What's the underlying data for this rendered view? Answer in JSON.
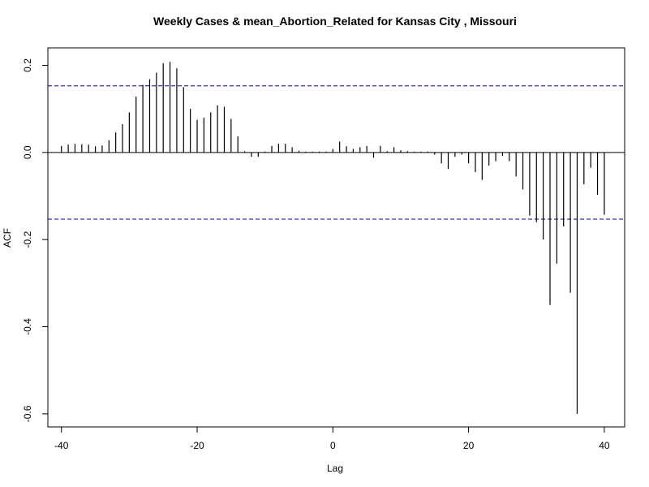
{
  "chart_data": {
    "type": "bar",
    "subtype": "acf-ccf",
    "title": "Weekly Cases & mean_Abortion_Related for Kansas City , Missouri",
    "xlabel": "Lag",
    "ylabel": "ACF",
    "xlim": [
      -42,
      43
    ],
    "ylim": [
      -0.63,
      0.24
    ],
    "xticks": [
      -40,
      -20,
      0,
      20,
      40
    ],
    "xtick_labels": [
      "-40",
      "-20",
      "0",
      "20",
      "40"
    ],
    "yticks": [
      -0.6,
      -0.4,
      -0.2,
      0.0,
      0.2
    ],
    "ytick_labels": [
      "-0.6",
      "-0.4",
      "-0.2",
      "0.0",
      "0.2"
    ],
    "confidence_bound": 0.153,
    "lags": [
      -40,
      -39,
      -38,
      -37,
      -36,
      -35,
      -34,
      -33,
      -32,
      -31,
      -30,
      -29,
      -28,
      -27,
      -26,
      -25,
      -24,
      -23,
      -22,
      -21,
      -20,
      -19,
      -18,
      -17,
      -16,
      -15,
      -14,
      -13,
      -12,
      -11,
      -10,
      -9,
      -8,
      -7,
      -6,
      -5,
      -4,
      -3,
      -2,
      -1,
      0,
      1,
      2,
      3,
      4,
      5,
      6,
      7,
      8,
      9,
      10,
      11,
      12,
      13,
      14,
      15,
      16,
      17,
      18,
      19,
      20,
      21,
      22,
      23,
      24,
      25,
      26,
      27,
      28,
      29,
      30,
      31,
      32,
      33,
      34,
      35,
      36,
      37,
      38,
      39,
      40
    ],
    "values": [
      0.015,
      0.018,
      0.02,
      0.019,
      0.018,
      0.014,
      0.016,
      0.028,
      0.046,
      0.065,
      0.092,
      0.128,
      0.155,
      0.168,
      0.183,
      0.205,
      0.208,
      0.193,
      0.15,
      0.1,
      0.075,
      0.08,
      0.092,
      0.108,
      0.105,
      0.077,
      0.037,
      0.003,
      -0.01,
      -0.01,
      0.002,
      0.015,
      0.02,
      0.02,
      0.012,
      0.004,
      0.002,
      0.002,
      0.002,
      0.002,
      0.008,
      0.025,
      0.014,
      0.008,
      0.012,
      0.015,
      -0.012,
      0.015,
      0.003,
      0.012,
      0.005,
      0.003,
      0.002,
      0.002,
      0.002,
      -0.005,
      -0.025,
      -0.038,
      -0.01,
      -0.005,
      -0.025,
      -0.045,
      -0.063,
      -0.03,
      -0.02,
      -0.008,
      -0.02,
      -0.055,
      -0.085,
      -0.145,
      -0.16,
      -0.2,
      -0.35,
      -0.255,
      -0.17,
      -0.322,
      -0.6,
      -0.073,
      -0.035,
      -0.097,
      -0.143
    ],
    "grid": false,
    "legend": "none",
    "colors": {
      "bars": "#000000",
      "bound": "#00008B",
      "frame": "#000000",
      "background": "#ffffff"
    }
  }
}
